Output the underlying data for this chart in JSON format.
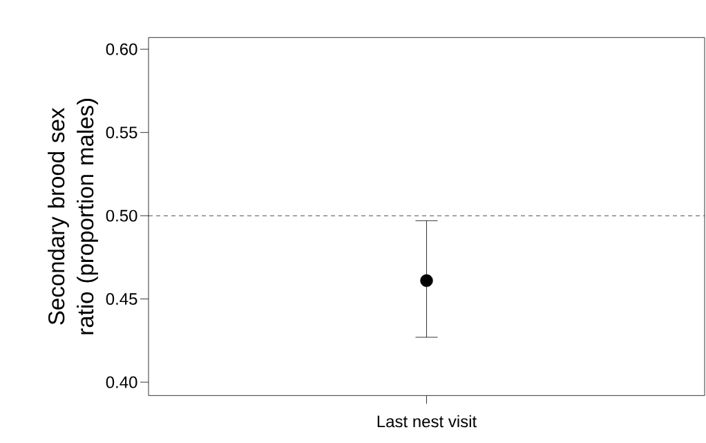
{
  "chart_data": {
    "type": "scatter",
    "ylabel": "Secondary brood sex ratio (proportion males)",
    "xlabel": "Last nest visit",
    "categories": [
      null
    ],
    "series": [
      {
        "color": "#000000",
        "values": [
          0.461
        ],
        "errors": [
          [
            0.427,
            0.497
          ]
        ]
      }
    ],
    "marker": "circle",
    "ylim": [
      0.392,
      0.607
    ],
    "yticks": [
      {
        "value": 0.4,
        "label": "0.40"
      },
      {
        "value": 0.45,
        "label": "0.45"
      },
      {
        "value": 0.5,
        "label": "0.50"
      },
      {
        "value": 0.55,
        "label": "0.55"
      },
      {
        "value": 0.6,
        "label": "0.60"
      }
    ],
    "ref_lines": [
      {
        "axis": "y",
        "value": 0.5,
        "line_style": "dashed",
        "color": "#000000"
      }
    ],
    "grid": false
  }
}
